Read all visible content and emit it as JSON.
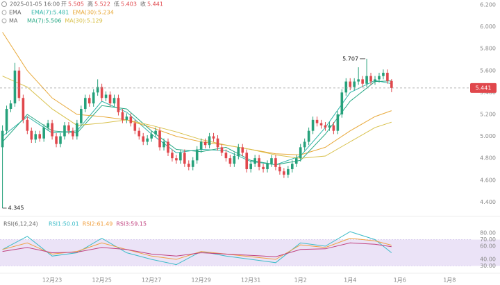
{
  "chart_data": [
    {
      "type": "candlestick",
      "time": "2025-01-05 16:00",
      "ohlc_labels": [
        "开",
        "高",
        "低",
        "收"
      ],
      "up_color": "#26a17b",
      "down_color": "#e0474c",
      "candles": [
        [
          4.9,
          5.1,
          4.345,
          5.05
        ],
        [
          5.05,
          5.28,
          5.02,
          5.25
        ],
        [
          5.25,
          5.33,
          5.22,
          5.3
        ],
        [
          5.3,
          5.67,
          5.27,
          5.6
        ],
        [
          5.6,
          5.63,
          5.32,
          5.35
        ],
        [
          5.35,
          5.38,
          5.12,
          5.15
        ],
        [
          5.15,
          5.18,
          5.02,
          5.05
        ],
        [
          5.05,
          5.08,
          4.94,
          4.97
        ],
        [
          4.97,
          5.05,
          4.94,
          5.02
        ],
        [
          5.02,
          5.05,
          4.95,
          4.98
        ],
        [
          4.98,
          5.11,
          4.95,
          5.08
        ],
        [
          5.08,
          5.15,
          5.05,
          5.12
        ],
        [
          5.12,
          5.15,
          4.97,
          5.0
        ],
        [
          5.0,
          5.03,
          4.9,
          4.93
        ],
        [
          4.93,
          5.03,
          4.9,
          5.0
        ],
        [
          5.0,
          5.13,
          4.97,
          5.1
        ],
        [
          5.1,
          5.13,
          5.02,
          5.05
        ],
        [
          5.05,
          5.08,
          4.97,
          5.0
        ],
        [
          5.0,
          5.15,
          4.97,
          5.12
        ],
        [
          5.12,
          5.28,
          5.09,
          5.25
        ],
        [
          5.25,
          5.38,
          5.22,
          5.35
        ],
        [
          5.35,
          5.38,
          5.27,
          5.3
        ],
        [
          5.3,
          5.43,
          5.27,
          5.4
        ],
        [
          5.4,
          5.52,
          5.37,
          5.45
        ],
        [
          5.45,
          5.48,
          5.32,
          5.35
        ],
        [
          5.35,
          5.41,
          5.32,
          5.38
        ],
        [
          5.38,
          5.41,
          5.27,
          5.3
        ],
        [
          5.3,
          5.38,
          5.27,
          5.35
        ],
        [
          5.35,
          5.38,
          5.19,
          5.22
        ],
        [
          5.22,
          5.25,
          5.12,
          5.15
        ],
        [
          5.15,
          5.21,
          5.12,
          5.18
        ],
        [
          5.18,
          5.21,
          5.09,
          5.12
        ],
        [
          5.12,
          5.15,
          5.02,
          5.05
        ],
        [
          5.05,
          5.08,
          4.97,
          5.0
        ],
        [
          5.0,
          5.03,
          4.92,
          4.95
        ],
        [
          4.95,
          5.01,
          4.92,
          4.98
        ],
        [
          4.98,
          5.05,
          4.95,
          5.02
        ],
        [
          5.02,
          5.08,
          4.99,
          5.05
        ],
        [
          5.05,
          5.08,
          4.87,
          4.9
        ],
        [
          4.9,
          4.98,
          4.87,
          4.95
        ],
        [
          4.95,
          4.98,
          4.82,
          4.85
        ],
        [
          4.85,
          4.88,
          4.77,
          4.8
        ],
        [
          4.8,
          4.83,
          4.75,
          4.78
        ],
        [
          4.78,
          4.88,
          4.75,
          4.85
        ],
        [
          4.85,
          4.88,
          4.72,
          4.75
        ],
        [
          4.75,
          4.78,
          4.69,
          4.72
        ],
        [
          4.72,
          4.81,
          4.69,
          4.78
        ],
        [
          4.78,
          4.91,
          4.75,
          4.88
        ],
        [
          4.88,
          4.98,
          4.85,
          4.95
        ],
        [
          4.95,
          4.98,
          4.89,
          4.92
        ],
        [
          4.92,
          5.03,
          4.89,
          5.0
        ],
        [
          5.0,
          5.03,
          4.95,
          4.98
        ],
        [
          4.98,
          5.01,
          4.87,
          4.9
        ],
        [
          4.9,
          4.93,
          4.82,
          4.85
        ],
        [
          4.85,
          4.88,
          4.77,
          4.8
        ],
        [
          4.8,
          4.83,
          4.72,
          4.75
        ],
        [
          4.75,
          4.85,
          4.72,
          4.82
        ],
        [
          4.82,
          4.93,
          4.79,
          4.9
        ],
        [
          4.9,
          4.93,
          4.82,
          4.85
        ],
        [
          4.85,
          4.88,
          4.67,
          4.7
        ],
        [
          4.7,
          4.78,
          4.67,
          4.75
        ],
        [
          4.75,
          4.83,
          4.72,
          4.8
        ],
        [
          4.8,
          4.83,
          4.69,
          4.72
        ],
        [
          4.72,
          4.75,
          4.67,
          4.7
        ],
        [
          4.7,
          4.78,
          4.67,
          4.75
        ],
        [
          4.75,
          4.83,
          4.72,
          4.8
        ],
        [
          4.8,
          4.83,
          4.69,
          4.72
        ],
        [
          4.72,
          4.75,
          4.65,
          4.68
        ],
        [
          4.68,
          4.71,
          4.62,
          4.65
        ],
        [
          4.65,
          4.73,
          4.62,
          4.7
        ],
        [
          4.7,
          4.78,
          4.67,
          4.75
        ],
        [
          4.75,
          4.83,
          4.72,
          4.8
        ],
        [
          4.8,
          4.93,
          4.77,
          4.9
        ],
        [
          4.9,
          4.98,
          4.87,
          4.95
        ],
        [
          4.95,
          5.08,
          4.92,
          5.05
        ],
        [
          5.05,
          5.18,
          5.02,
          5.15
        ],
        [
          5.15,
          5.18,
          5.09,
          5.12
        ],
        [
          5.12,
          5.15,
          5.07,
          5.1
        ],
        [
          5.1,
          5.13,
          5.05,
          5.08
        ],
        [
          5.08,
          5.13,
          5.05,
          5.1
        ],
        [
          5.1,
          5.13,
          5.02,
          5.05
        ],
        [
          5.05,
          5.23,
          5.02,
          5.2
        ],
        [
          5.2,
          5.43,
          5.17,
          5.4
        ],
        [
          5.4,
          5.53,
          5.37,
          5.5
        ],
        [
          5.5,
          5.53,
          5.42,
          5.45
        ],
        [
          5.45,
          5.53,
          5.42,
          5.5
        ],
        [
          5.5,
          5.63,
          5.47,
          5.52
        ],
        [
          5.52,
          5.55,
          5.45,
          5.48
        ],
        [
          5.48,
          5.707,
          5.45,
          5.55
        ],
        [
          5.55,
          5.58,
          5.47,
          5.5
        ],
        [
          5.5,
          5.55,
          5.47,
          5.52
        ],
        [
          5.52,
          5.58,
          5.49,
          5.55
        ],
        [
          5.55,
          5.61,
          5.52,
          5.58
        ],
        [
          5.58,
          5.61,
          5.48,
          5.505
        ],
        [
          5.505,
          5.522,
          5.403,
          5.441
        ]
      ],
      "indicator_groups": [
        "EMA",
        "MA"
      ],
      "x": [
        0,
        6,
        12,
        18,
        24,
        30,
        36,
        42,
        48,
        54,
        60,
        66,
        72,
        78,
        84,
        90,
        94
      ],
      "series": [
        {
          "name": "EMA(7):5.481",
          "group": 0,
          "color": "#2fb5a8",
          "values": [
            5.0,
            5.18,
            5.03,
            5.05,
            5.32,
            5.22,
            5.02,
            4.85,
            4.88,
            4.87,
            4.77,
            4.74,
            4.82,
            5.08,
            5.4,
            5.51,
            5.481
          ]
        },
        {
          "name": "EMA(30):5.234",
          "group": 0,
          "color": "#e8a93a",
          "values": [
            5.95,
            5.6,
            5.35,
            5.2,
            5.18,
            5.15,
            5.08,
            5.0,
            4.95,
            4.92,
            4.88,
            4.84,
            4.83,
            4.9,
            5.05,
            5.18,
            5.234
          ]
        },
        {
          "name": "MA(7):5.506",
          "group": 1,
          "color": "#27a884",
          "values": [
            4.95,
            5.2,
            5.05,
            5.03,
            5.28,
            5.25,
            5.05,
            4.88,
            4.86,
            4.9,
            4.78,
            4.74,
            4.78,
            5.02,
            5.32,
            5.5,
            5.506
          ]
        },
        {
          "name": "MA(30):5.129",
          "group": 1,
          "color": "#d8c04a",
          "values": [
            5.55,
            5.45,
            5.25,
            5.1,
            5.12,
            5.15,
            5.1,
            5.04,
            4.97,
            4.92,
            4.88,
            4.83,
            4.8,
            4.82,
            4.95,
            5.08,
            5.129
          ]
        }
      ],
      "xlim": [
        -0.6,
        120.2
      ],
      "ylim": [
        4.282,
        6.244
      ],
      "yticks": [
        {
          "value": 6.2,
          "label": "6.200"
        },
        {
          "value": 6.0,
          "label": "6.000"
        },
        {
          "value": 5.8,
          "label": "5.800"
        },
        {
          "value": 5.6,
          "label": "5.600"
        },
        {
          "value": 5.4,
          "label": "5.400"
        },
        {
          "value": 5.2,
          "label": "5.200"
        },
        {
          "value": 5.0,
          "label": "5.000"
        },
        {
          "value": 4.8,
          "label": "4.800"
        },
        {
          "value": 4.6,
          "label": "4.600"
        },
        {
          "value": 4.4,
          "label": "4.400"
        }
      ]
    },
    {
      "type": "line",
      "title": "RSI(6,12,24)",
      "x": [
        0,
        6,
        12,
        18,
        24,
        30,
        36,
        42,
        48,
        54,
        60,
        66,
        72,
        78,
        84,
        90,
        94
      ],
      "series": [
        {
          "name": "RSI1:50.01",
          "color": "#3cbcc8",
          "values": [
            55,
            75,
            45,
            50,
            72,
            50,
            40,
            32,
            52,
            45,
            40,
            35,
            65,
            60,
            82,
            70,
            50.01
          ]
        },
        {
          "name": "RSI2:61.49",
          "color": "#f0a040",
          "values": [
            55,
            65,
            48,
            52,
            65,
            55,
            45,
            40,
            52,
            48,
            44,
            40,
            62,
            58,
            72,
            68,
            61.49
          ]
        },
        {
          "name": "RSI3:59.15",
          "color": "#c0407e",
          "values": [
            52,
            58,
            50,
            51,
            58,
            55,
            48,
            45,
            50,
            48,
            46,
            44,
            55,
            56,
            65,
            63,
            59.15
          ]
        }
      ],
      "band": [
        30,
        70
      ],
      "band_color": "#ebe3f7",
      "xlim": [
        -0.6,
        120.2
      ],
      "ylim": [
        20,
        91.6
      ],
      "yticks": [
        {
          "value": 80,
          "label": "80.00"
        },
        {
          "value": 70,
          "label": "70.00"
        },
        {
          "value": 60,
          "label": "60.00"
        },
        {
          "value": 40,
          "label": "40.00"
        },
        {
          "value": 30,
          "label": "30.00"
        }
      ],
      "xticks": [
        {
          "value": 12,
          "label": "12月23"
        },
        {
          "value": 24,
          "label": "12月25"
        },
        {
          "value": 36,
          "label": "12月27"
        },
        {
          "value": 48,
          "label": "12月29"
        },
        {
          "value": 60,
          "label": "12月31"
        },
        {
          "value": 72,
          "label": "1月2"
        },
        {
          "value": 84,
          "label": "1月4"
        },
        {
          "value": 96,
          "label": "1月6"
        },
        {
          "value": 108,
          "label": "1月8"
        }
      ]
    }
  ]
}
